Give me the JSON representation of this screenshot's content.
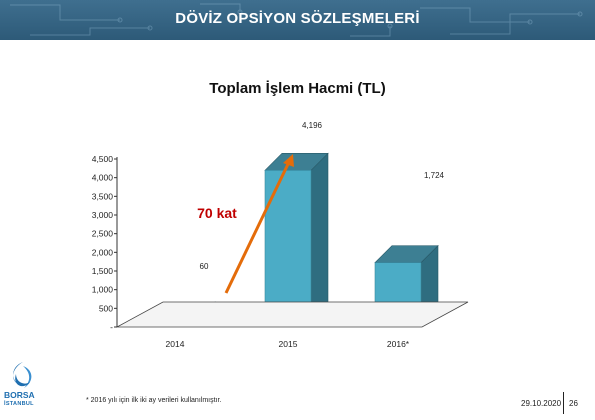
{
  "banner": {
    "title": "DÖVİZ OPSİYON SÖZLEŞMELERİ"
  },
  "chart_data": {
    "type": "bar",
    "title": "Toplam İşlem Hacmi (TL)",
    "categories": [
      "2014",
      "2015",
      "2016*"
    ],
    "values": [
      60,
      4196,
      1724
    ],
    "data_labels": [
      "60",
      "4,196",
      "1,724"
    ],
    "y_ticks": [
      "-",
      "500",
      "1,000",
      "1,500",
      "2,000",
      "2,500",
      "3,000",
      "3,500",
      "4,000",
      "4,500"
    ],
    "ylim": [
      0,
      4500
    ],
    "grid": false,
    "bar_color": "#4bacc6",
    "annotation": {
      "text": "70 kat",
      "color": "#c00000",
      "arrow_color": "#e46c0a"
    }
  },
  "footer": {
    "footnote": "* 2016 yılı için ilk iki ay verileri kullanılmıştır.",
    "date": "29.10.2020",
    "page": "26"
  },
  "logo": {
    "line1": "BORSA",
    "line2": "İSTANBUL"
  }
}
